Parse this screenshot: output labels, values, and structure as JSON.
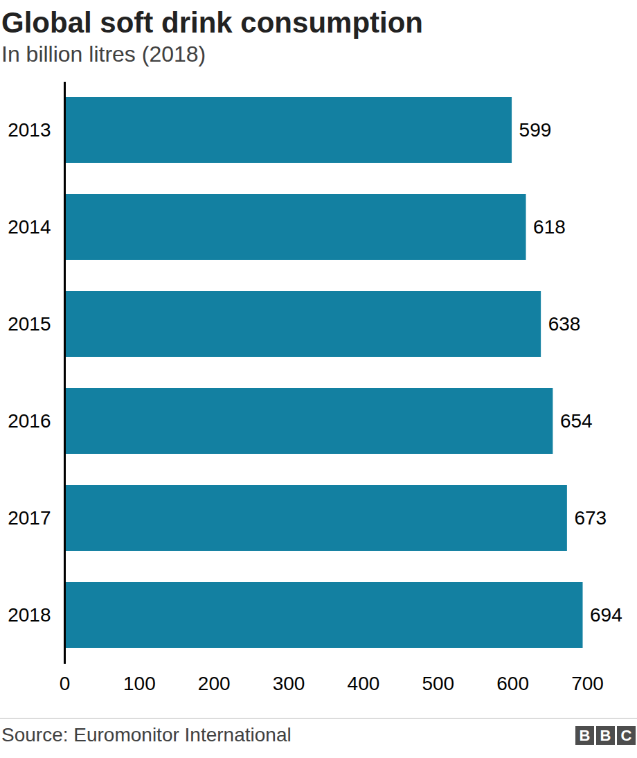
{
  "chart_data": {
    "type": "bar",
    "orientation": "horizontal",
    "title": "Global soft drink consumption",
    "subtitle": "In billion litres (2018)",
    "source": "Source: Euromonitor International",
    "logo": "BBC",
    "categories": [
      "2013",
      "2014",
      "2015",
      "2016",
      "2017",
      "2018"
    ],
    "values": [
      599,
      618,
      638,
      654,
      673,
      694
    ],
    "color": "#1380a1",
    "xlim": [
      0,
      700
    ],
    "xticks": [
      0,
      100,
      200,
      300,
      400,
      500,
      600,
      700
    ],
    "grid": false,
    "data_labels": true
  }
}
